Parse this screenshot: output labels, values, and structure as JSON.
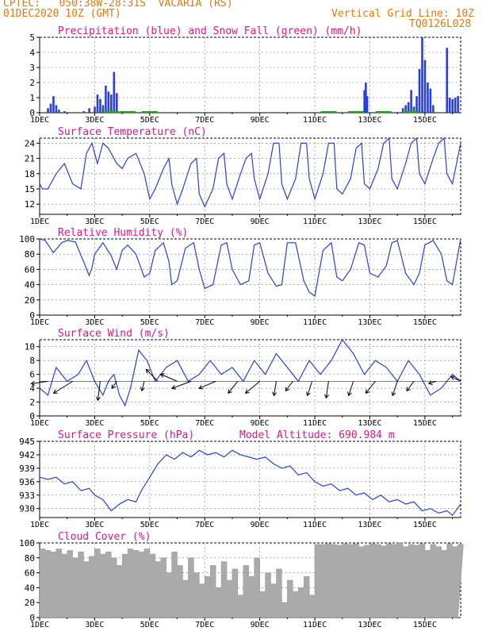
{
  "header": {
    "line1": "CPTEC:   050:38W-28:31S  VACARIA (RS)",
    "line2": "01DEC2020 10Z (GMT)",
    "grid_note": "Vertical Grid Line: 10Z",
    "code": "TQ0126L028"
  },
  "colors": {
    "header": "#e07a10",
    "title": "#e0158a",
    "line": "#2a3fd8",
    "snow": "#18a818",
    "cloud": "#aaaaaa",
    "grid": "#777777"
  },
  "x_axis": {
    "labels": [
      "1DEC",
      "3DEC",
      "5DEC",
      "7DEC",
      "9DEC",
      "11DEC",
      "13DEC",
      "15DEC"
    ],
    "day_range": [
      1,
      16.3
    ]
  },
  "chart_data": [
    {
      "id": "precip",
      "type": "bar",
      "title": "Precipitation (blue) and Snow Fall (green) (mm/h)",
      "ylim": [
        0,
        5
      ],
      "yticks": [
        0,
        1,
        2,
        3,
        4,
        5
      ],
      "series": [
        {
          "name": "Precipitation",
          "x": [
            1.3,
            1.4,
            1.5,
            1.6,
            1.7,
            1.9,
            2.6,
            2.8,
            3.0,
            3.1,
            3.2,
            3.3,
            3.4,
            3.5,
            3.6,
            3.7,
            3.8,
            4.8,
            12.8,
            12.85,
            12.9,
            14.2,
            14.3,
            14.4,
            14.5,
            14.6,
            14.7,
            14.8,
            14.9,
            15.0,
            15.1,
            15.2,
            15.3,
            15.8,
            15.9,
            16.0,
            16.1,
            16.2
          ],
          "values": [
            0.3,
            0.6,
            1.1,
            0.5,
            0.2,
            0.1,
            0.1,
            0.3,
            0.4,
            1.2,
            0.9,
            0.5,
            1.8,
            1.4,
            1.2,
            2.7,
            1.3,
            0.1,
            1.5,
            2.0,
            1.1,
            0.3,
            0.5,
            0.7,
            1.5,
            0.4,
            1.1,
            2.9,
            5.0,
            3.5,
            2.0,
            1.6,
            0.5,
            4.3,
            1.0,
            0.9,
            1.0,
            1.1
          ]
        },
        {
          "name": "Snow Fall",
          "x": [
            3.6,
            4.2,
            5.0,
            11.5,
            12.5,
            13.5,
            14.5
          ],
          "values": [
            0,
            0,
            0,
            0,
            0,
            0,
            0
          ]
        }
      ]
    },
    {
      "id": "temp",
      "type": "line",
      "title": "Surface Temperature (nC)",
      "ylim": [
        10,
        25
      ],
      "yticks": [
        12,
        15,
        18,
        21,
        24
      ],
      "x": [
        1.0,
        1.1,
        1.3,
        1.6,
        1.9,
        2.2,
        2.5,
        2.7,
        2.9,
        3.0,
        3.1,
        3.3,
        3.5,
        3.8,
        4.0,
        4.2,
        4.5,
        4.8,
        5.0,
        5.2,
        5.5,
        5.7,
        5.8,
        6.0,
        6.2,
        6.5,
        6.7,
        6.8,
        7.0,
        7.3,
        7.5,
        7.7,
        7.8,
        8.0,
        8.3,
        8.5,
        8.7,
        8.8,
        9.0,
        9.3,
        9.5,
        9.7,
        9.8,
        10.0,
        10.3,
        10.5,
        10.7,
        10.8,
        11.0,
        11.3,
        11.5,
        11.7,
        11.8,
        12.0,
        12.3,
        12.5,
        12.7,
        12.8,
        13.0,
        13.3,
        13.5,
        13.7,
        13.8,
        14.0,
        14.3,
        14.5,
        14.7,
        14.8,
        15.0,
        15.3,
        15.5,
        15.7,
        15.8,
        16.0,
        16.3
      ],
      "values": [
        16,
        15,
        15,
        18,
        20,
        16,
        15,
        22,
        24,
        22,
        20,
        24,
        23,
        20,
        19,
        21,
        22,
        18,
        13,
        15,
        19,
        21,
        16,
        12,
        15,
        20,
        21,
        14,
        11.5,
        15,
        21,
        22,
        16,
        13,
        18,
        21,
        22,
        17,
        13,
        18,
        24,
        24,
        16,
        13,
        17,
        24,
        24,
        17,
        13,
        18,
        24,
        24,
        15,
        14,
        17,
        23,
        24,
        16,
        15,
        19,
        24,
        25,
        17,
        15,
        20,
        24,
        25,
        18,
        16,
        21,
        24,
        25,
        18,
        16,
        24
      ]
    },
    {
      "id": "rh",
      "type": "line",
      "title": "Relative Humidity (%)",
      "ylim": [
        0,
        100
      ],
      "yticks": [
        0,
        20,
        40,
        60,
        80,
        100
      ],
      "x": [
        1.0,
        1.2,
        1.5,
        1.8,
        2.0,
        2.3,
        2.6,
        2.8,
        2.9,
        3.0,
        3.1,
        3.3,
        3.6,
        3.8,
        4.0,
        4.2,
        4.5,
        4.8,
        5.0,
        5.2,
        5.5,
        5.7,
        5.8,
        6.0,
        6.3,
        6.6,
        6.8,
        7.0,
        7.3,
        7.6,
        7.8,
        8.0,
        8.3,
        8.6,
        8.8,
        9.0,
        9.3,
        9.6,
        9.8,
        10.0,
        10.3,
        10.6,
        10.8,
        11.0,
        11.3,
        11.6,
        11.8,
        12.0,
        12.3,
        12.6,
        12.8,
        13.0,
        13.3,
        13.6,
        13.8,
        14.0,
        14.3,
        14.6,
        14.8,
        15.0,
        15.3,
        15.6,
        15.8,
        16.0,
        16.3
      ],
      "values": [
        100,
        98,
        82,
        95,
        98,
        96,
        70,
        52,
        62,
        80,
        85,
        95,
        78,
        60,
        85,
        92,
        80,
        50,
        55,
        85,
        95,
        70,
        40,
        45,
        88,
        95,
        60,
        35,
        40,
        92,
        95,
        60,
        40,
        45,
        92,
        95,
        55,
        38,
        40,
        95,
        95,
        45,
        30,
        25,
        85,
        95,
        50,
        45,
        60,
        95,
        92,
        55,
        50,
        65,
        95,
        98,
        55,
        40,
        55,
        92,
        98,
        80,
        45,
        40,
        100
      ]
    },
    {
      "id": "wind",
      "type": "line",
      "title": "Surface Wind (m/s)",
      "ylim": [
        0,
        11
      ],
      "yticks": [
        0,
        2,
        4,
        6,
        8,
        10
      ],
      "x": [
        1.0,
        1.3,
        1.6,
        2.0,
        2.4,
        2.7,
        3.0,
        3.3,
        3.5,
        3.7,
        3.9,
        4.1,
        4.3,
        4.6,
        4.9,
        5.2,
        5.6,
        6.0,
        6.4,
        6.8,
        7.2,
        7.6,
        8.0,
        8.4,
        8.8,
        9.2,
        9.6,
        10.0,
        10.4,
        10.8,
        11.2,
        11.6,
        12.0,
        12.4,
        12.8,
        13.2,
        13.6,
        14.0,
        14.4,
        14.8,
        15.2,
        15.6,
        16.0,
        16.3
      ],
      "values": [
        4,
        3,
        7,
        5,
        6,
        8,
        5,
        3,
        5,
        6,
        3,
        1.5,
        4,
        9.5,
        8,
        5,
        7,
        8,
        5,
        6,
        8,
        6,
        7,
        5,
        8,
        6,
        9,
        7,
        5,
        8,
        6,
        8,
        11,
        9,
        6,
        8,
        7,
        5,
        8,
        6,
        3,
        4,
        6,
        5
      ],
      "vectors": [
        {
          "x": 1.3,
          "u": 3.5,
          "v": 0.5
        },
        {
          "x": 2.2,
          "u": 4,
          "v": 2.5
        },
        {
          "x": 3.2,
          "u": 0.5,
          "v": 4
        },
        {
          "x": 3.8,
          "u": 1,
          "v": 1.5
        },
        {
          "x": 4.8,
          "u": 0.5,
          "v": 2
        },
        {
          "x": 5.3,
          "u": 2.5,
          "v": -2.5
        },
        {
          "x": 6.0,
          "u": 3.5,
          "v": -1.5
        },
        {
          "x": 6.5,
          "u": 4,
          "v": 1.5
        },
        {
          "x": 7.4,
          "u": 3.5,
          "v": 1.5
        },
        {
          "x": 8.2,
          "u": 2,
          "v": 2.5
        },
        {
          "x": 9.0,
          "u": 3,
          "v": 2.5
        },
        {
          "x": 9.6,
          "u": 0.5,
          "v": 3
        },
        {
          "x": 10.2,
          "u": 1.5,
          "v": 2
        },
        {
          "x": 10.9,
          "u": 1,
          "v": 3
        },
        {
          "x": 11.5,
          "u": 0.5,
          "v": 3.5
        },
        {
          "x": 12.4,
          "u": 1,
          "v": 3
        },
        {
          "x": 13.2,
          "u": 2,
          "v": 2.5
        },
        {
          "x": 14.0,
          "u": 1,
          "v": 3
        },
        {
          "x": 14.6,
          "u": 1.5,
          "v": 2
        },
        {
          "x": 15.4,
          "u": 1.5,
          "v": 0.5
        },
        {
          "x": 16.3,
          "u": 2,
          "v": -1
        }
      ]
    },
    {
      "id": "pressure",
      "type": "line",
      "title": "Surface Pressure (hPa)",
      "annotation": "Model Altitude: 690.984 m",
      "ylim": [
        928,
        945
      ],
      "yticks": [
        930,
        933,
        936,
        939,
        942,
        945
      ],
      "x": [
        1.0,
        1.3,
        1.6,
        1.9,
        2.2,
        2.5,
        2.8,
        3.0,
        3.3,
        3.6,
        3.9,
        4.2,
        4.5,
        4.7,
        5.0,
        5.3,
        5.6,
        5.9,
        6.2,
        6.5,
        6.8,
        7.1,
        7.4,
        7.7,
        8.0,
        8.3,
        8.6,
        8.9,
        9.2,
        9.5,
        9.8,
        10.1,
        10.4,
        10.7,
        11.0,
        11.3,
        11.6,
        11.9,
        12.2,
        12.5,
        12.8,
        13.1,
        13.4,
        13.7,
        14.0,
        14.3,
        14.6,
        14.9,
        15.2,
        15.5,
        15.8,
        16.0,
        16.3
      ],
      "values": [
        937,
        936.5,
        937,
        935.5,
        936,
        934,
        934.5,
        933,
        932,
        929.5,
        931,
        932,
        931.5,
        934,
        937,
        940,
        942,
        941,
        942.5,
        941.5,
        943,
        942,
        942.5,
        941.5,
        943,
        942,
        941.5,
        941,
        941.5,
        940,
        939,
        939.5,
        937.5,
        938,
        936,
        935,
        935.5,
        934,
        934.5,
        933,
        933.5,
        932,
        933,
        931.5,
        932,
        931,
        931.5,
        929.5,
        930,
        929,
        929.5,
        928.5,
        931
      ]
    },
    {
      "id": "cloud",
      "type": "area",
      "title": "Cloud Cover (%)",
      "ylim": [
        0,
        100
      ],
      "yticks": [
        0,
        20,
        40,
        60,
        80,
        100
      ],
      "x": [
        1.0,
        1.2,
        1.4,
        1.6,
        1.8,
        2.0,
        2.2,
        2.4,
        2.6,
        2.8,
        3.0,
        3.2,
        3.4,
        3.6,
        3.8,
        4.0,
        4.2,
        4.4,
        4.6,
        4.8,
        5.0,
        5.2,
        5.4,
        5.6,
        5.8,
        6.0,
        6.2,
        6.4,
        6.6,
        6.8,
        7.0,
        7.2,
        7.4,
        7.6,
        7.8,
        8.0,
        8.2,
        8.4,
        8.6,
        8.8,
        9.0,
        9.2,
        9.4,
        9.6,
        9.8,
        10.0,
        10.2,
        10.4,
        10.6,
        10.8,
        11.0,
        11.2,
        11.4,
        11.6,
        11.8,
        12.0,
        12.2,
        12.4,
        12.6,
        12.8,
        13.0,
        13.2,
        13.4,
        13.6,
        13.8,
        14.0,
        14.2,
        14.4,
        14.6,
        14.8,
        15.0,
        15.2,
        15.4,
        15.6,
        15.8,
        16.0,
        16.2
      ],
      "values": [
        92,
        90,
        88,
        92,
        85,
        90,
        80,
        88,
        75,
        82,
        92,
        85,
        88,
        80,
        70,
        85,
        92,
        90,
        88,
        92,
        85,
        75,
        80,
        60,
        88,
        70,
        50,
        80,
        60,
        45,
        55,
        70,
        40,
        75,
        50,
        65,
        30,
        70,
        55,
        80,
        35,
        60,
        45,
        65,
        20,
        50,
        35,
        40,
        55,
        30,
        98,
        98,
        99,
        98,
        97,
        99,
        98,
        99,
        95,
        97,
        99,
        98,
        96,
        99,
        98,
        100,
        95,
        98,
        97,
        99,
        90,
        98,
        95,
        90,
        99,
        95,
        98
      ]
    }
  ]
}
